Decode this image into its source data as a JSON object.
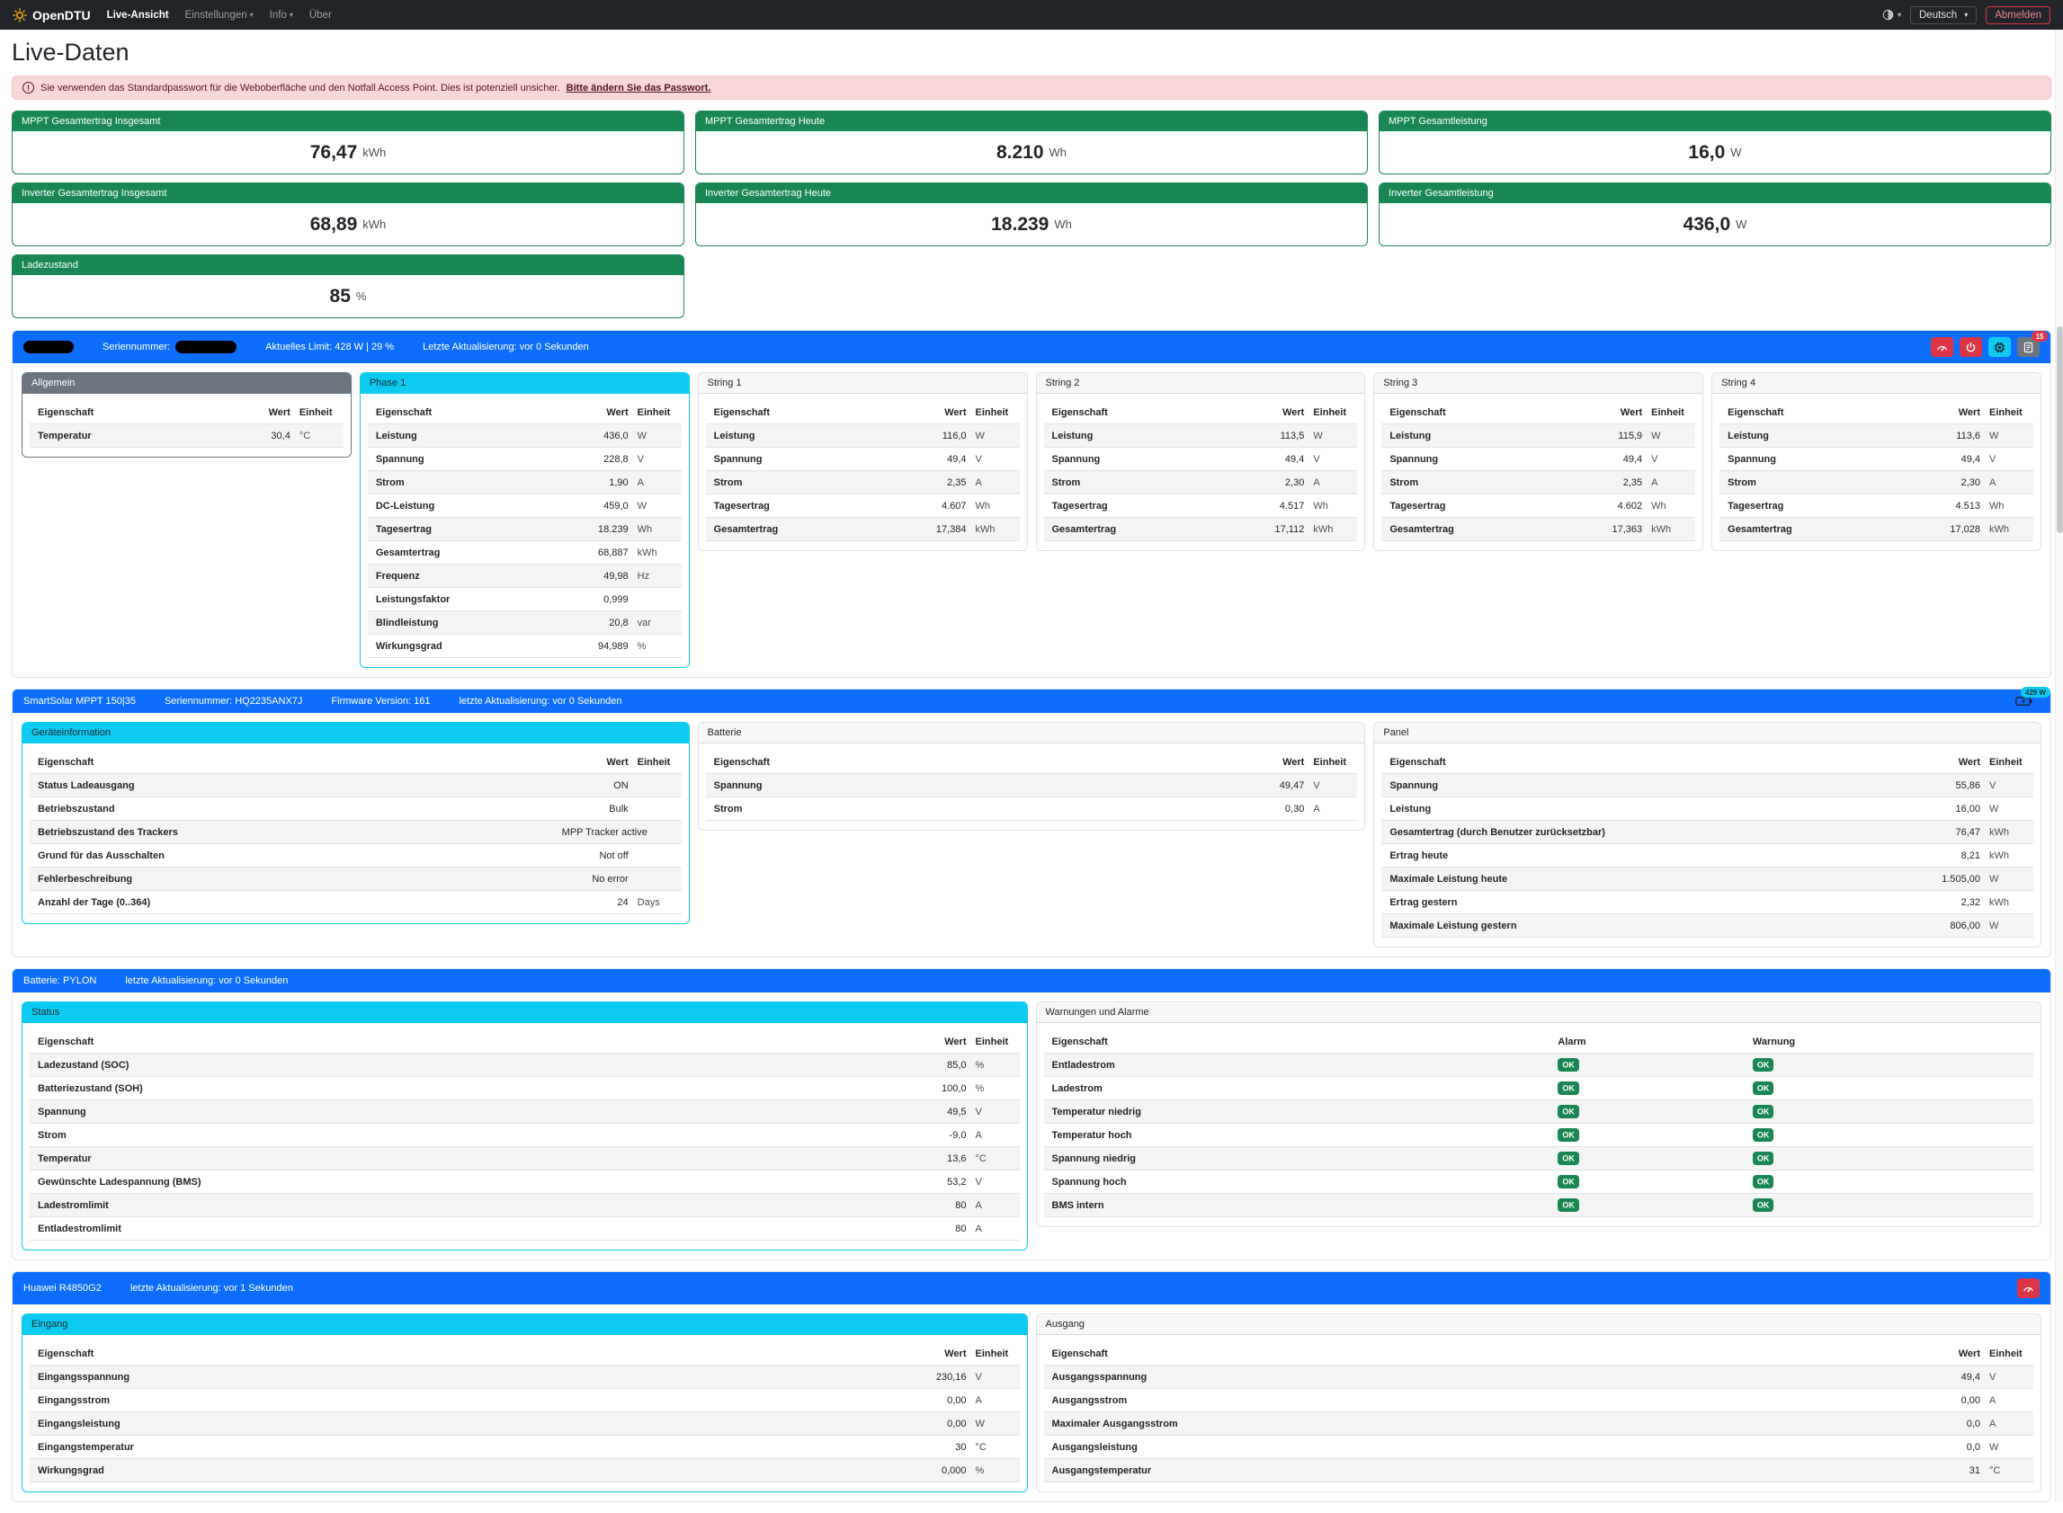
{
  "colors": {
    "navbar_bg": "#212529",
    "primary": "#0d6efd",
    "info": "#0dcaf0",
    "success": "#198754",
    "danger": "#dc3545",
    "secondary": "#6c757d",
    "alert_bg": "#f8d7da",
    "alert_text": "#58151c",
    "brand_sun": "#ffb005"
  },
  "navbar": {
    "brand": "OpenDTU",
    "items": [
      {
        "label": "Live-Ansicht"
      },
      {
        "label": "Einstellungen"
      },
      {
        "label": "Info"
      },
      {
        "label": "Über"
      }
    ],
    "language": "Deutsch",
    "logout_label": "Abmelden"
  },
  "page": {
    "title": "Live-Daten"
  },
  "alert": {
    "text": "Sie verwenden das Standardpasswort für die Weboberfläche und den Notfall Access Point. Dies ist potenziell unsicher.",
    "link": "Bitte ändern Sie das Passwort."
  },
  "summary_cards": [
    {
      "label": "MPPT Gesamtertrag Insgesamt",
      "value": "76,47",
      "unit": "kWh"
    },
    {
      "label": "MPPT Gesamtertrag Heute",
      "value": "8.210",
      "unit": "Wh"
    },
    {
      "label": "MPPT Gesamtleistung",
      "value": "16,0",
      "unit": "W"
    },
    {
      "label": "Inverter Gesamtertrag Insgesamt",
      "value": "68,89",
      "unit": "kWh"
    },
    {
      "label": "Inverter Gesamtertrag Heute",
      "value": "18.239",
      "unit": "Wh"
    },
    {
      "label": "Inverter Gesamtleistung",
      "value": "436,0",
      "unit": "W"
    },
    {
      "label": "Ladezustand",
      "value": "85",
      "unit": "%"
    }
  ],
  "inverter_section": {
    "header": {
      "serial_label": "Seriennummer:",
      "limit": "Aktuelles Limit: 428 W | 29 %",
      "updated": "Letzte Aktualisierung: vor 0 Sekunden",
      "event_count": "15",
      "action_icons": [
        "gauge-icon",
        "power-icon",
        "cpu-icon",
        "journal-icon"
      ]
    },
    "tables": {
      "allgemein": {
        "title": "Allgemein",
        "type": "kv",
        "columns": [
          "Eigenschaft",
          "Wert",
          "Einheit"
        ],
        "rows": [
          [
            "Temperatur",
            "30,4",
            "°C"
          ]
        ]
      },
      "phase1": {
        "title": "Phase 1",
        "type": "kv",
        "columns": [
          "Eigenschaft",
          "Wert",
          "Einheit"
        ],
        "rows": [
          [
            "Leistung",
            "436,0",
            "W"
          ],
          [
            "Spannung",
            "228,8",
            "V"
          ],
          [
            "Strom",
            "1,90",
            "A"
          ],
          [
            "DC-Leistung",
            "459,0",
            "W"
          ],
          [
            "Tagesertrag",
            "18.239",
            "Wh"
          ],
          [
            "Gesamtertrag",
            "68,887",
            "kWh"
          ],
          [
            "Frequenz",
            "49,98",
            "Hz"
          ],
          [
            "Leistungsfaktor",
            "0,999",
            ""
          ],
          [
            "Blindleistung",
            "20,8",
            "var"
          ],
          [
            "Wirkungsgrad",
            "94,989",
            "%"
          ]
        ]
      },
      "string1": {
        "title": "String 1",
        "type": "kv",
        "columns": [
          "Eigenschaft",
          "Wert",
          "Einheit"
        ],
        "rows": [
          [
            "Leistung",
            "116,0",
            "W"
          ],
          [
            "Spannung",
            "49,4",
            "V"
          ],
          [
            "Strom",
            "2,35",
            "A"
          ],
          [
            "Tagesertrag",
            "4.607",
            "Wh"
          ],
          [
            "Gesamtertrag",
            "17,384",
            "kWh"
          ]
        ]
      },
      "string2": {
        "title": "String 2",
        "type": "kv",
        "columns": [
          "Eigenschaft",
          "Wert",
          "Einheit"
        ],
        "rows": [
          [
            "Leistung",
            "113,5",
            "W"
          ],
          [
            "Spannung",
            "49,4",
            "V"
          ],
          [
            "Strom",
            "2,30",
            "A"
          ],
          [
            "Tagesertrag",
            "4.517",
            "Wh"
          ],
          [
            "Gesamtertrag",
            "17,112",
            "kWh"
          ]
        ]
      },
      "string3": {
        "title": "String 3",
        "type": "kv",
        "columns": [
          "Eigenschaft",
          "Wert",
          "Einheit"
        ],
        "rows": [
          [
            "Leistung",
            "115,9",
            "W"
          ],
          [
            "Spannung",
            "49,4",
            "V"
          ],
          [
            "Strom",
            "2,35",
            "A"
          ],
          [
            "Tagesertrag",
            "4.602",
            "Wh"
          ],
          [
            "Gesamtertrag",
            "17,363",
            "kWh"
          ]
        ]
      },
      "string4": {
        "title": "String 4",
        "type": "kv",
        "columns": [
          "Eigenschaft",
          "Wert",
          "Einheit"
        ],
        "rows": [
          [
            "Leistung",
            "113,6",
            "W"
          ],
          [
            "Spannung",
            "49,4",
            "V"
          ],
          [
            "Strom",
            "2,30",
            "A"
          ],
          [
            "Tagesertrag",
            "4.513",
            "Wh"
          ],
          [
            "Gesamtertrag",
            "17,028",
            "kWh"
          ]
        ]
      }
    }
  },
  "mppt_section": {
    "header": {
      "title": "SmartSolar MPPT 150|35",
      "serial": "Seriennummer: HQ2235ANX7J",
      "firmware": "Firmware Version: 161",
      "updated": "letzte Aktualisierung: vor 0 Sekunden",
      "power_badge": "429 W",
      "icon": "battery-charging-icon"
    },
    "tables": {
      "device": {
        "title": "Geräteinformation",
        "type": "kv",
        "columns": [
          "Eigenschaft",
          "Wert",
          "Einheit"
        ],
        "rows": [
          [
            "Status Ladeausgang",
            "ON",
            ""
          ],
          [
            "Betriebszustand",
            "Bulk",
            ""
          ],
          [
            "Betriebszustand des Trackers",
            "MPP Tracker active",
            ""
          ],
          [
            "Grund für das Ausschalten",
            "Not off",
            ""
          ],
          [
            "Fehlerbeschreibung",
            "No error",
            ""
          ],
          [
            "Anzahl der Tage (0..364)",
            "24",
            "Days"
          ]
        ]
      },
      "battery": {
        "title": "Batterie",
        "type": "kv",
        "columns": [
          "Eigenschaft",
          "Wert",
          "Einheit"
        ],
        "rows": [
          [
            "Spannung",
            "49,47",
            "V"
          ],
          [
            "Strom",
            "0,30",
            "A"
          ]
        ]
      },
      "panel": {
        "title": "Panel",
        "type": "kv",
        "columns": [
          "Eigenschaft",
          "Wert",
          "Einheit"
        ],
        "rows": [
          [
            "Spannung",
            "55,86",
            "V"
          ],
          [
            "Leistung",
            "16,00",
            "W"
          ],
          [
            "Gesamtertrag (durch Benutzer zurücksetzbar)",
            "76,47",
            "kWh"
          ],
          [
            "Ertrag heute",
            "8,21",
            "kWh"
          ],
          [
            "Maximale Leistung heute",
            "1.505,00",
            "W"
          ],
          [
            "Ertrag gestern",
            "2,32",
            "kWh"
          ],
          [
            "Maximale Leistung gestern",
            "806,00",
            "W"
          ]
        ]
      }
    }
  },
  "battery_section": {
    "header": {
      "title": "Batterie: PYLON",
      "updated": "letzte Aktualisierung: vor 0 Sekunden"
    },
    "tables": {
      "status": {
        "title": "Status",
        "type": "kv",
        "columns": [
          "Eigenschaft",
          "Wert",
          "Einheit"
        ],
        "rows": [
          [
            "Ladezustand (SOC)",
            "85,0",
            "%"
          ],
          [
            "Batteriezustand (SOH)",
            "100,0",
            "%"
          ],
          [
            "Spannung",
            "49,5",
            "V"
          ],
          [
            "Strom",
            "-9,0",
            "A"
          ],
          [
            "Temperatur",
            "13,6",
            "°C"
          ],
          [
            "Gewünschte Ladespannung (BMS)",
            "53,2",
            "V"
          ],
          [
            "Ladestromlimit",
            "80",
            "A"
          ],
          [
            "Entladestromlimit",
            "80",
            "A"
          ]
        ]
      },
      "alarms": {
        "title": "Warnungen und Alarme",
        "type": "badges",
        "columns": [
          "Eigenschaft",
          "Alarm",
          "Warnung"
        ],
        "rows": [
          [
            "Entladestrom",
            "OK",
            "OK"
          ],
          [
            "Ladestrom",
            "OK",
            "OK"
          ],
          [
            "Temperatur niedrig",
            "OK",
            "OK"
          ],
          [
            "Temperatur hoch",
            "OK",
            "OK"
          ],
          [
            "Spannung niedrig",
            "OK",
            "OK"
          ],
          [
            "Spannung hoch",
            "OK",
            "OK"
          ],
          [
            "BMS intern",
            "OK",
            "OK"
          ]
        ]
      }
    }
  },
  "psu_section": {
    "header": {
      "title": "Huawei R4850G2",
      "updated": "letzte Aktualisierung: vor 1 Sekunden"
    },
    "tables": {
      "input": {
        "title": "Eingang",
        "type": "kv",
        "columns": [
          "Eigenschaft",
          "Wert",
          "Einheit"
        ],
        "rows": [
          [
            "Eingangsspannung",
            "230,16",
            "V"
          ],
          [
            "Eingangsstrom",
            "0,00",
            "A"
          ],
          [
            "Eingangsleistung",
            "0,00",
            "W"
          ],
          [
            "Eingangstemperatur",
            "30",
            "°C"
          ],
          [
            "Wirkungsgrad",
            "0,000",
            "%"
          ]
        ]
      },
      "output": {
        "title": "Ausgang",
        "type": "kv",
        "columns": [
          "Eigenschaft",
          "Wert",
          "Einheit"
        ],
        "rows": [
          [
            "Ausgangsspannung",
            "49,4",
            "V"
          ],
          [
            "Ausgangsstrom",
            "0,00",
            "A"
          ],
          [
            "Maximaler Ausgangsstrom",
            "0,0",
            "A"
          ],
          [
            "Ausgangsleistung",
            "0,0",
            "W"
          ],
          [
            "Ausgangstemperatur",
            "31",
            "°C"
          ]
        ]
      }
    }
  }
}
